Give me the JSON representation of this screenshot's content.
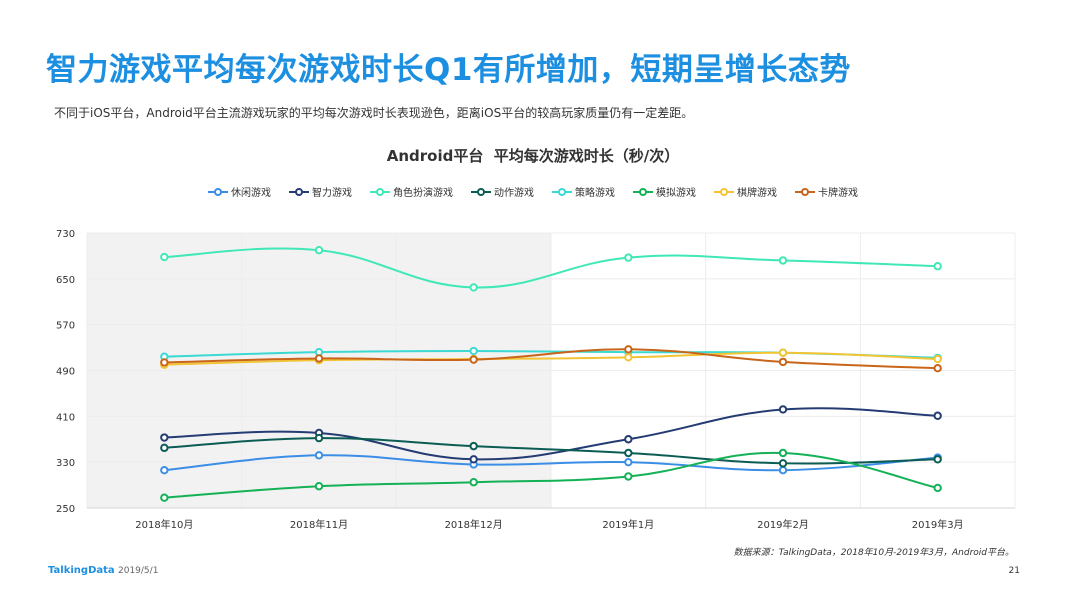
{
  "page": {
    "headline": "智力游戏平均每次游戏时长Q1有所增加，短期呈增长态势",
    "subline": "不同于iOS平台，Android平台主流游戏玩家的平均每次游戏时长表现逊色，距离iOS平台的较高玩家质量仍有一定差距。",
    "source": "数据来源：TalkingData，2018年10月-2019年3月，Android平台。",
    "footer_logo": "TalkingData",
    "footer_date": "2019/5/1",
    "page_number": "21"
  },
  "chart_data": {
    "type": "line",
    "title": "Android平台  平均每次游戏时长（秒/次）",
    "xlabel": "",
    "ylabel": "",
    "categories": [
      "2018年10月",
      "2018年11月",
      "2018年12月",
      "2019年1月",
      "2019年2月",
      "2019年3月"
    ],
    "ylim": [
      250,
      730
    ],
    "yticks": [
      250,
      330,
      410,
      490,
      570,
      650,
      730
    ],
    "highlight_range": [
      "2018年10月",
      "2018年12月"
    ],
    "legend_position": "top-center",
    "grid": true,
    "series": [
      {
        "name": "休闲游戏",
        "color": "#3a8ee6",
        "values": [
          316,
          342,
          326,
          330,
          316,
          338
        ]
      },
      {
        "name": "智力游戏",
        "color": "#243c73",
        "values": [
          373,
          381,
          335,
          370,
          422,
          411
        ]
      },
      {
        "name": "角色扮演游戏",
        "color": "#3fe8b6",
        "values": [
          688,
          700,
          635,
          687,
          682,
          672
        ]
      },
      {
        "name": "动作游戏",
        "color": "#0b5c54",
        "values": [
          355,
          372,
          358,
          346,
          328,
          335
        ]
      },
      {
        "name": "策略游戏",
        "color": "#3bd9d2",
        "values": [
          514,
          522,
          524,
          522,
          521,
          512
        ]
      },
      {
        "name": "模拟游戏",
        "color": "#14b156",
        "values": [
          268,
          288,
          295,
          305,
          346,
          285
        ]
      },
      {
        "name": "棋牌游戏",
        "color": "#f2c433",
        "values": [
          500,
          508,
          510,
          513,
          521,
          510
        ]
      },
      {
        "name": "卡牌游戏",
        "color": "#c8651a",
        "values": [
          504,
          511,
          509,
          527,
          505,
          494
        ]
      }
    ]
  }
}
